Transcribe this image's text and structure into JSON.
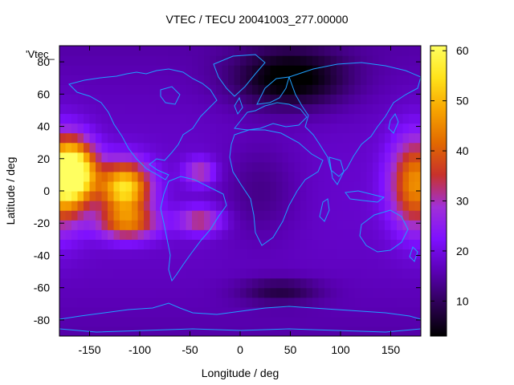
{
  "title": "VTEC / TECU 20041003_277.00000",
  "key_label": "'Vtec_",
  "chart_data": {
    "type": "heatmap",
    "xlabel": "Longitude / deg",
    "ylabel": "Latitude / deg",
    "xlim": [
      -180,
      180
    ],
    "ylim": [
      -90,
      90
    ],
    "x_ticks": [
      "-150",
      "-100",
      "-50",
      "0",
      "50",
      "100",
      "150"
    ],
    "x_tick_values": [
      -150,
      -100,
      -50,
      0,
      50,
      100,
      150
    ],
    "y_ticks": [
      "-80",
      "-60",
      "-40",
      "-20",
      "0",
      "20",
      "40",
      "60",
      "80"
    ],
    "y_tick_values": [
      -80,
      -60,
      -40,
      -20,
      0,
      20,
      40,
      60,
      80
    ],
    "colorbar": {
      "range": [
        3,
        61
      ],
      "ticks": [
        "10",
        "20",
        "30",
        "40",
        "50",
        "60"
      ],
      "tick_values": [
        10,
        20,
        30,
        40,
        50,
        60
      ]
    },
    "overlay": "coastlines",
    "grid": false,
    "legend_placement": "top-left"
  },
  "colors": {
    "coastline": "#1ea0ff",
    "palette": [
      "#000000",
      "#2d0055",
      "#5a00b4",
      "#7e10ff",
      "#a030d8",
      "#c8322b",
      "#e26a00",
      "#f7a400",
      "#ffe21a",
      "#ffff60"
    ]
  }
}
